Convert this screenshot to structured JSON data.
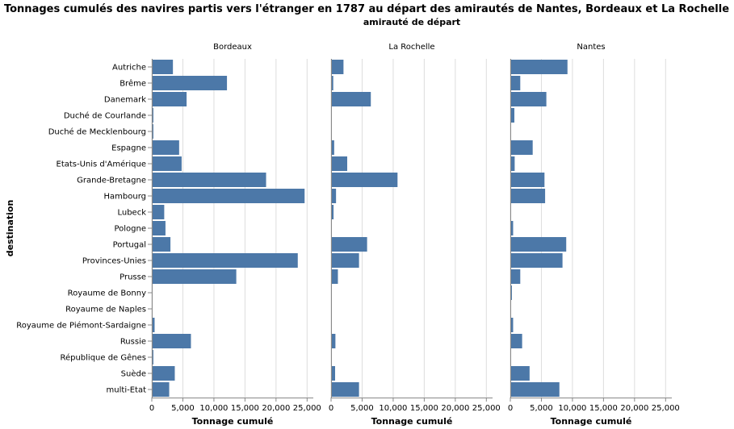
{
  "chart_data": {
    "type": "bar",
    "orientation": "horizontal",
    "title": "Tonnages cumulés des navires partis vers l'étranger en 1787 au départ des amirautés de Nantes, Bordeaux et La Rochelle",
    "subtitle": "amirauté de départ",
    "xlabel": "Tonnage cumulé",
    "ylabel": "destination",
    "xlim": [
      0,
      26000
    ],
    "xticks": [
      0,
      5000,
      10000,
      15000,
      20000,
      25000
    ],
    "xtick_labels": [
      "0",
      "5,000",
      "10,000",
      "15,000",
      "20,000",
      "25,000"
    ],
    "grid": true,
    "color": "#4c78a8",
    "categories": [
      "Autriche",
      "Brême",
      "Danemark",
      "Duché de Courlande",
      "Duché de Mecklenbourg",
      "Espagne",
      "Etats-Unis d'Amérique",
      "Grande-Bretagne",
      "Hambourg",
      "Lubeck",
      "Pologne",
      "Portugal",
      "Provinces-Unies",
      "Prusse",
      "Royaume de Bonny",
      "Royaume de Naples",
      "Royaume de Piémont-Sardaigne",
      "Russie",
      "République de Gênes",
      "Suède",
      "multi-Etat"
    ],
    "facets": [
      {
        "name": "Bordeaux",
        "values": [
          3400,
          12100,
          5600,
          250,
          250,
          4400,
          4800,
          18400,
          24600,
          2000,
          2200,
          3000,
          23500,
          13600,
          80,
          80,
          450,
          6300,
          250,
          3700,
          2800
        ]
      },
      {
        "name": "La Rochelle",
        "values": [
          2000,
          350,
          6400,
          0,
          0,
          500,
          2600,
          10700,
          800,
          400,
          0,
          5800,
          4500,
          1100,
          0,
          0,
          0,
          700,
          0,
          650,
          4500
        ]
      },
      {
        "name": "Nantes",
        "values": [
          9200,
          1600,
          5800,
          650,
          0,
          3600,
          700,
          5500,
          5600,
          0,
          450,
          9000,
          8400,
          1600,
          250,
          0,
          450,
          1900,
          0,
          3100,
          7900
        ]
      }
    ]
  }
}
